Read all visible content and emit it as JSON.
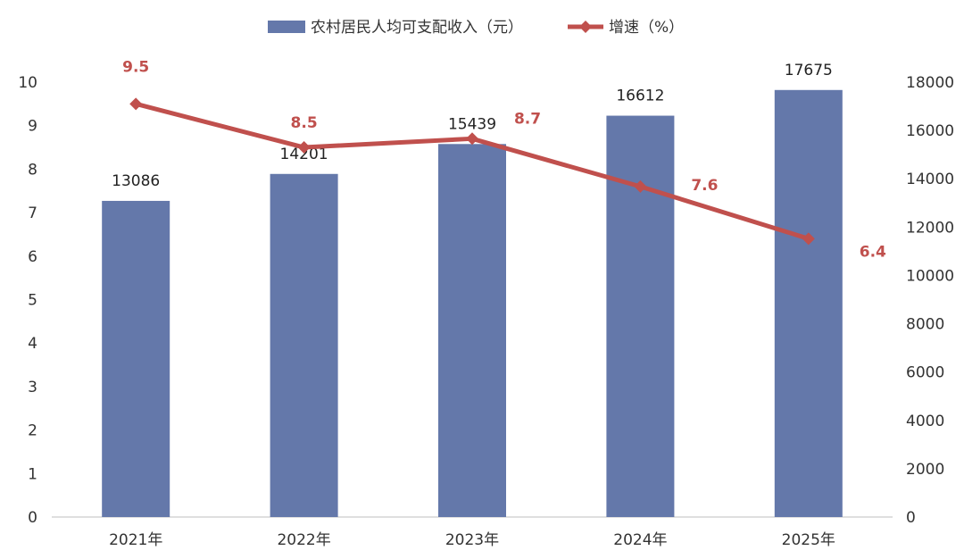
{
  "chart_data": {
    "type": "bar",
    "categories": [
      "2021年",
      "2022年",
      "2023年",
      "2024年",
      "2025年"
    ],
    "series": [
      {
        "name": "农村居民人均可支配收入（元）",
        "kind": "bar",
        "axis": "right",
        "values": [
          13086,
          14201,
          15439,
          16612,
          17675
        ],
        "color": "#6478aa"
      },
      {
        "name": "增速（%）",
        "kind": "line",
        "axis": "left",
        "values": [
          9.5,
          8.5,
          8.7,
          7.6,
          6.4
        ],
        "color": "#c0504d"
      }
    ],
    "left_axis": {
      "ticks": [
        "0",
        "1",
        "2",
        "3",
        "4",
        "5",
        "6",
        "7",
        "8",
        "9",
        "10"
      ],
      "ylim": [
        0,
        10
      ]
    },
    "right_axis": {
      "ticks": [
        "0",
        "2000",
        "4000",
        "6000",
        "8000",
        "10000",
        "12000",
        "14000",
        "16000",
        "18000"
      ],
      "ylim": [
        0,
        18000
      ]
    },
    "grid": false,
    "legend_position": "top-center"
  }
}
